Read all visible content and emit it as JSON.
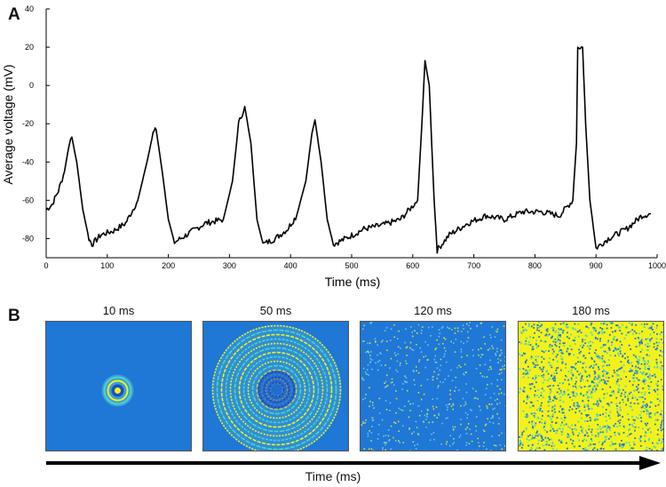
{
  "panels": {
    "a": "A",
    "b": "B"
  },
  "chart_data": {
    "type": "line",
    "xlabel": "Time (ms)",
    "ylabel": "Average voltage (mV)",
    "xlim": [
      0,
      1000
    ],
    "ylim": [
      -90,
      40
    ],
    "x_ticks": [
      0,
      100,
      200,
      300,
      400,
      500,
      600,
      700,
      800,
      900,
      1000
    ],
    "y_ticks": [
      40,
      20,
      0,
      -20,
      -40,
      -60,
      -80
    ],
    "grid": false,
    "series": [
      {
        "color": "#000000",
        "points": [
          [
            0,
            -65
          ],
          [
            10,
            -62
          ],
          [
            20,
            -55
          ],
          [
            30,
            -45
          ],
          [
            38,
            -30
          ],
          [
            42,
            -27
          ],
          [
            50,
            -40
          ],
          [
            60,
            -65
          ],
          [
            70,
            -80
          ],
          [
            75,
            -83
          ],
          [
            90,
            -78
          ],
          [
            110,
            -76
          ],
          [
            130,
            -72
          ],
          [
            150,
            -60
          ],
          [
            165,
            -40
          ],
          [
            175,
            -25
          ],
          [
            180,
            -23
          ],
          [
            190,
            -45
          ],
          [
            200,
            -70
          ],
          [
            210,
            -82
          ],
          [
            230,
            -78
          ],
          [
            260,
            -72
          ],
          [
            290,
            -70
          ],
          [
            305,
            -50
          ],
          [
            315,
            -20
          ],
          [
            325,
            -11
          ],
          [
            335,
            -30
          ],
          [
            345,
            -70
          ],
          [
            355,
            -83
          ],
          [
            375,
            -80
          ],
          [
            395,
            -75
          ],
          [
            410,
            -68
          ],
          [
            425,
            -50
          ],
          [
            435,
            -25
          ],
          [
            440,
            -18
          ],
          [
            450,
            -40
          ],
          [
            460,
            -70
          ],
          [
            470,
            -83
          ],
          [
            490,
            -80
          ],
          [
            520,
            -75
          ],
          [
            550,
            -73
          ],
          [
            580,
            -70
          ],
          [
            608,
            -60
          ],
          [
            615,
            -20
          ],
          [
            620,
            13
          ],
          [
            627,
            0
          ],
          [
            635,
            -60
          ],
          [
            640,
            -86
          ],
          [
            660,
            -78
          ],
          [
            690,
            -72
          ],
          [
            720,
            -68
          ],
          [
            750,
            -70
          ],
          [
            780,
            -66
          ],
          [
            810,
            -66
          ],
          [
            840,
            -68
          ],
          [
            862,
            -60
          ],
          [
            868,
            -30
          ],
          [
            870,
            20
          ],
          [
            878,
            20
          ],
          [
            883,
            -20
          ],
          [
            890,
            -60
          ],
          [
            900,
            -85
          ],
          [
            920,
            -80
          ],
          [
            950,
            -75
          ],
          [
            975,
            -68
          ],
          [
            990,
            -67
          ]
        ]
      }
    ]
  },
  "snapshots": [
    {
      "label": "10 ms",
      "pattern": "small-ring"
    },
    {
      "label": "50 ms",
      "pattern": "concentric-rings"
    },
    {
      "label": "120 ms",
      "pattern": "sparse-noise"
    },
    {
      "label": "180 ms",
      "pattern": "dense-noise"
    }
  ],
  "timeline": {
    "label": "Time (ms)"
  },
  "colors": {
    "background_blue": "#1f77d6",
    "deep_blue": "#1a4fc4",
    "yellow": "#f2f21a",
    "cyan": "#4fd1c5",
    "trace": "#000000"
  }
}
